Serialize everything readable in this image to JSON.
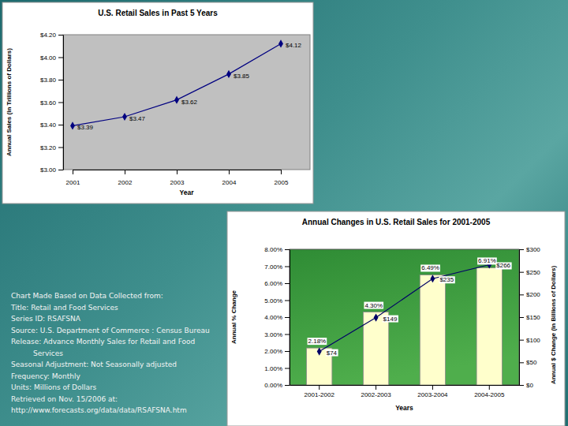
{
  "chart_data": [
    {
      "type": "line",
      "title": "U.S. Retail Sales in Past 5 Years",
      "x_label": "Year",
      "y_label": "Annual Sales (in Trillions of Dollars)",
      "categories": [
        "2001",
        "2002",
        "2003",
        "2004",
        "2005"
      ],
      "values": [
        3.39,
        3.47,
        3.62,
        3.85,
        4.12
      ],
      "value_labels": [
        "$3.39",
        "$3.47",
        "$3.62",
        "$3.85",
        "$4.12"
      ],
      "color": "#000080",
      "marker": "diamond",
      "data_labels": true,
      "grid": false,
      "ylim": [
        3.0,
        4.2
      ],
      "yticks": [
        {
          "value": 3.0,
          "label": "$3.00"
        },
        {
          "value": 3.2,
          "label": "$3.20"
        },
        {
          "value": 3.4,
          "label": "$3.40"
        },
        {
          "value": 3.6,
          "label": "$3.60"
        },
        {
          "value": 3.8,
          "label": "$3.80"
        },
        {
          "value": 4.0,
          "label": "$4.00"
        },
        {
          "value": 4.2,
          "label": "$4.20"
        }
      ]
    },
    {
      "type": "bar",
      "title": "Annual Changes in U.S. Retail Sales for 2001-2005",
      "x_label": "Years",
      "y_label": "Annual % Change",
      "y2_label": "Annual $ Change (in Billions of Dollars)",
      "categories": [
        "2001-2002",
        "2002-2003",
        "2003-2004",
        "2004-2005"
      ],
      "series": [
        {
          "type": "bar",
          "color": "#ffffcc",
          "values": [
            2.18,
            4.3,
            6.49,
            6.91
          ],
          "value_labels": [
            "2.18%",
            "4.30%",
            "6.49%",
            "6.91%"
          ]
        },
        {
          "type": "line",
          "axis": "y2",
          "color": "#000066",
          "marker": "diamond",
          "values": [
            74,
            149,
            235,
            266
          ],
          "value_labels": [
            "$74",
            "$149",
            "$235",
            "$266"
          ]
        }
      ],
      "data_labels": true,
      "grid": false,
      "ylim": [
        0,
        8
      ],
      "yticks": [
        {
          "value": 0,
          "label": "0.00%"
        },
        {
          "value": 1,
          "label": "1.00%"
        },
        {
          "value": 2,
          "label": "2.00%"
        },
        {
          "value": 3,
          "label": "3.00%"
        },
        {
          "value": 4,
          "label": "4.00%"
        },
        {
          "value": 5,
          "label": "5.00%"
        },
        {
          "value": 6,
          "label": "6.00%"
        },
        {
          "value": 7,
          "label": "7.00%"
        },
        {
          "value": 8,
          "label": "8.00%"
        }
      ],
      "y2lim": [
        0,
        300
      ],
      "y2ticks": [
        {
          "value": 0,
          "label": "$0"
        },
        {
          "value": 50,
          "label": "$50"
        },
        {
          "value": 100,
          "label": "$100"
        },
        {
          "value": 150,
          "label": "$150"
        },
        {
          "value": 200,
          "label": "$200"
        },
        {
          "value": 250,
          "label": "$250"
        },
        {
          "value": 300,
          "label": "$300"
        }
      ]
    }
  ],
  "source_note": {
    "lines": [
      "Chart Made Based on Data Collected from:",
      "Title: Retail and Food Services",
      "Series ID: RSAFSNA",
      "Source: U.S. Department of Commerce : Census Bureau",
      "Release: Advance Monthly Sales for Retail and Food Services",
      "Seasonal Adjustment: Not Seasonally adjusted",
      "Frequency: Monthly",
      "Units: Millions of Dollars",
      "Retrieved  on Nov. 15/2006 at:",
      "http://www.forecasts.org/data/data/RSAFSNA.htm"
    ]
  }
}
